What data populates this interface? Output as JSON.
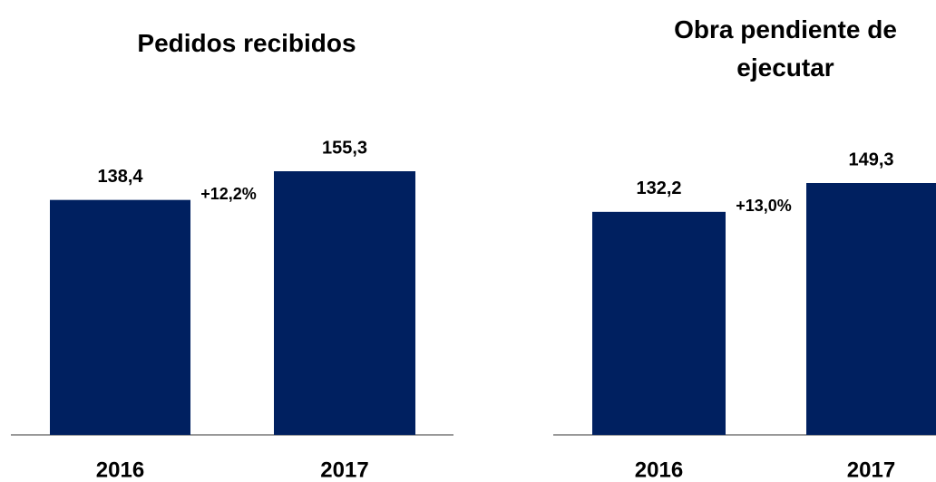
{
  "chart_data": [
    {
      "type": "bar",
      "title": "Pedidos recibidos",
      "categories": [
        "2016",
        "2017"
      ],
      "values": [
        138.4,
        155.3
      ],
      "value_labels": [
        "138,4",
        "155,3"
      ],
      "color": "#002060",
      "annotation": "+12,2%"
    },
    {
      "type": "bar",
      "title": "Obra pendiente de ejecutar",
      "categories": [
        "2016",
        "2017"
      ],
      "values": [
        132.2,
        149.3
      ],
      "value_labels": [
        "132,2",
        "149,3"
      ],
      "color": "#002060",
      "annotation": "+13,0%"
    }
  ]
}
